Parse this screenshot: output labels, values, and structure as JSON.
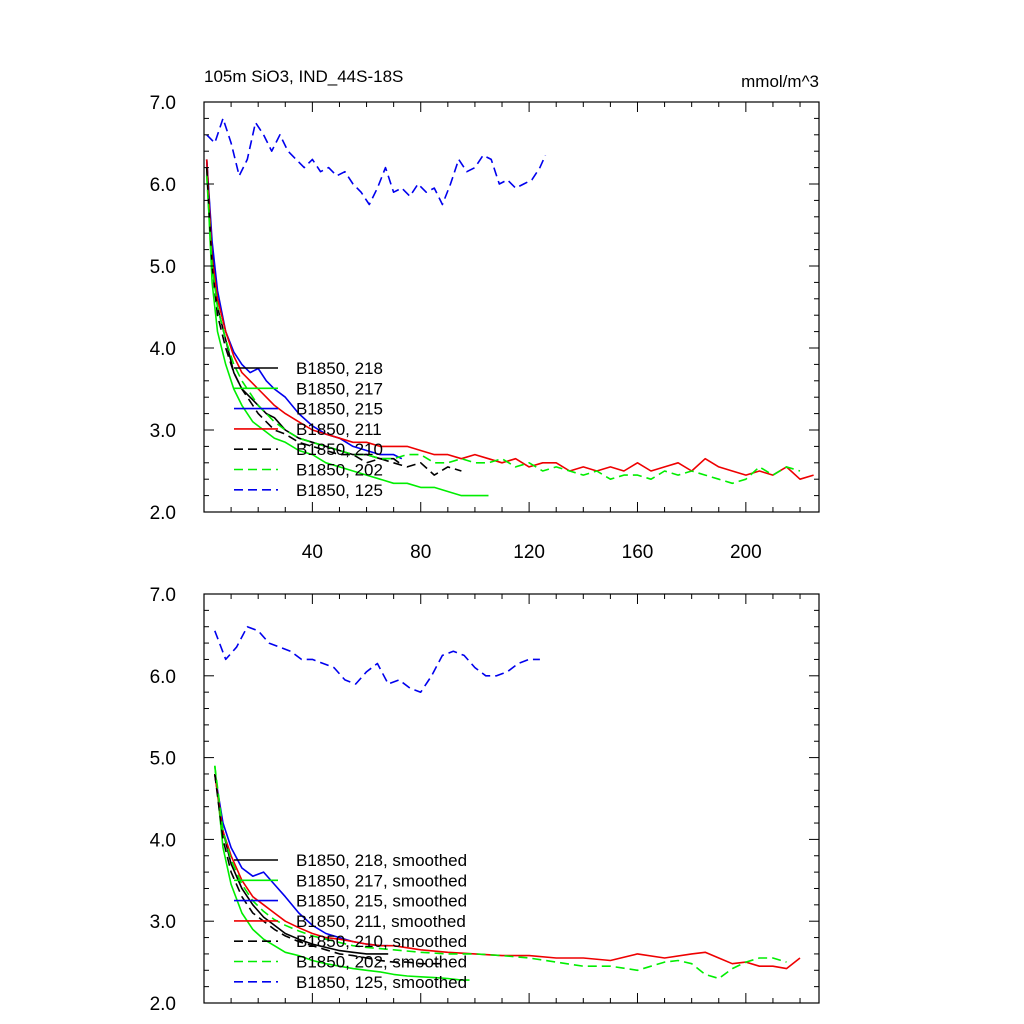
{
  "figure": {
    "title": "105m SiO3, IND_44S-18S",
    "units": "mmol/m^3"
  },
  "colors": {
    "black": "#000000",
    "green": "#00ee00",
    "blue": "#0000ee",
    "red": "#ee0000"
  },
  "chart_data": [
    {
      "type": "line",
      "xlim": [
        0,
        227
      ],
      "ylim": [
        2.0,
        7.0
      ],
      "yticks": [
        2.0,
        3.0,
        4.0,
        5.0,
        6.0,
        7.0
      ],
      "ytick_labels": [
        "2.0",
        "3.0",
        "4.0",
        "5.0",
        "6.0",
        "7.0"
      ],
      "xticks": [
        40,
        80,
        120,
        160,
        200
      ],
      "xtick_labels": [
        "40",
        "80",
        "120",
        "160",
        "200"
      ],
      "legend_position": "lower-left",
      "series": [
        {
          "name": "B1850, 218",
          "color": "#000000",
          "dash": "solid",
          "x": [
            1,
            3,
            5,
            8,
            11,
            14,
            17,
            20,
            23,
            26,
            30,
            35,
            40,
            45,
            50,
            55,
            60,
            65,
            70,
            72
          ],
          "y": [
            6.3,
            5.2,
            4.5,
            4.1,
            3.7,
            3.5,
            3.4,
            3.3,
            3.2,
            3.15,
            3.0,
            2.9,
            2.85,
            2.8,
            2.75,
            2.7,
            2.7,
            2.65,
            2.65,
            2.6
          ]
        },
        {
          "name": "B1850, 217",
          "color": "#00ee00",
          "dash": "solid",
          "x": [
            1,
            3,
            5,
            8,
            11,
            14,
            18,
            22,
            26,
            30,
            35,
            40,
            45,
            50,
            55,
            60,
            65,
            70,
            75,
            80,
            85,
            90,
            95,
            100,
            105
          ],
          "y": [
            6.2,
            4.8,
            4.2,
            3.8,
            3.5,
            3.3,
            3.1,
            3.0,
            2.9,
            2.85,
            2.75,
            2.7,
            2.6,
            2.55,
            2.5,
            2.45,
            2.4,
            2.35,
            2.35,
            2.3,
            2.3,
            2.25,
            2.2,
            2.2,
            2.2
          ]
        },
        {
          "name": "B1850, 215",
          "color": "#0000ee",
          "dash": "solid",
          "x": [
            1,
            3,
            5,
            8,
            11,
            14,
            17,
            20,
            23,
            26,
            30,
            35,
            40,
            45,
            50,
            55,
            60,
            65,
            70,
            73
          ],
          "y": [
            6.3,
            5.3,
            4.7,
            4.2,
            3.95,
            3.8,
            3.7,
            3.75,
            3.6,
            3.5,
            3.4,
            3.2,
            3.05,
            2.95,
            2.9,
            2.8,
            2.75,
            2.7,
            2.7,
            2.65
          ]
        },
        {
          "name": "B1850, 211",
          "color": "#ee0000",
          "dash": "solid",
          "x": [
            1,
            3,
            5,
            8,
            11,
            14,
            17,
            20,
            23,
            26,
            30,
            35,
            40,
            45,
            50,
            55,
            60,
            65,
            70,
            75,
            80,
            85,
            90,
            95,
            100,
            105,
            110,
            115,
            120,
            125,
            130,
            135,
            140,
            145,
            150,
            155,
            160,
            165,
            170,
            175,
            180,
            185,
            190,
            195,
            200,
            205,
            210,
            215,
            220,
            225
          ],
          "y": [
            6.3,
            5.1,
            4.6,
            4.2,
            3.9,
            3.7,
            3.6,
            3.5,
            3.4,
            3.3,
            3.2,
            3.1,
            3.0,
            2.95,
            2.9,
            2.85,
            2.85,
            2.8,
            2.8,
            2.8,
            2.75,
            2.7,
            2.7,
            2.65,
            2.7,
            2.65,
            2.6,
            2.65,
            2.55,
            2.6,
            2.6,
            2.5,
            2.55,
            2.5,
            2.55,
            2.5,
            2.6,
            2.5,
            2.55,
            2.6,
            2.5,
            2.65,
            2.55,
            2.5,
            2.45,
            2.5,
            2.45,
            2.55,
            2.4,
            2.45
          ]
        },
        {
          "name": "B1850, 210",
          "color": "#000000",
          "dash": "dashed",
          "x": [
            1,
            3,
            5,
            8,
            11,
            14,
            17,
            20,
            23,
            26,
            30,
            35,
            40,
            45,
            50,
            55,
            60,
            65,
            70,
            75,
            80,
            85,
            90,
            95
          ],
          "y": [
            6.2,
            5.0,
            4.4,
            4.0,
            3.7,
            3.5,
            3.35,
            3.2,
            3.1,
            3.0,
            2.95,
            2.85,
            2.8,
            2.75,
            2.7,
            2.7,
            2.6,
            2.65,
            2.6,
            2.55,
            2.6,
            2.45,
            2.55,
            2.5
          ]
        },
        {
          "name": "B1850, 202",
          "color": "#00ee00",
          "dash": "dashed",
          "x": [
            1,
            3,
            5,
            8,
            11,
            14,
            17,
            20,
            23,
            26,
            30,
            35,
            40,
            45,
            50,
            55,
            60,
            65,
            70,
            75,
            80,
            85,
            90,
            95,
            100,
            105,
            110,
            115,
            120,
            125,
            130,
            135,
            140,
            145,
            150,
            155,
            160,
            165,
            170,
            175,
            180,
            185,
            190,
            195,
            200,
            205,
            210,
            215,
            220
          ],
          "y": [
            6.1,
            5.0,
            4.5,
            4.1,
            3.8,
            3.6,
            3.45,
            3.3,
            3.2,
            3.1,
            3.0,
            2.9,
            2.85,
            2.8,
            2.75,
            2.7,
            2.7,
            2.65,
            2.65,
            2.7,
            2.7,
            2.6,
            2.6,
            2.65,
            2.6,
            2.6,
            2.65,
            2.55,
            2.6,
            2.5,
            2.55,
            2.5,
            2.45,
            2.5,
            2.4,
            2.45,
            2.45,
            2.4,
            2.5,
            2.45,
            2.5,
            2.45,
            2.4,
            2.35,
            2.4,
            2.55,
            2.45,
            2.55,
            2.5
          ]
        },
        {
          "name": "B1850, 125",
          "color": "#0000ee",
          "dash": "dashed",
          "x": [
            1,
            4,
            7,
            10,
            13,
            16,
            19,
            22,
            25,
            28,
            31,
            34,
            37,
            40,
            43,
            46,
            49,
            52,
            55,
            58,
            61,
            64,
            67,
            70,
            73,
            76,
            79,
            82,
            85,
            88,
            91,
            94,
            97,
            100,
            103,
            106,
            109,
            112,
            115,
            118,
            121,
            124,
            126
          ],
          "y": [
            6.6,
            6.5,
            6.8,
            6.5,
            6.1,
            6.3,
            6.75,
            6.6,
            6.4,
            6.6,
            6.4,
            6.3,
            6.2,
            6.3,
            6.15,
            6.2,
            6.1,
            6.15,
            6.0,
            5.9,
            5.75,
            5.95,
            6.2,
            5.9,
            5.95,
            5.85,
            6.0,
            5.9,
            5.95,
            5.75,
            6.0,
            6.3,
            6.15,
            6.2,
            6.35,
            6.3,
            6.0,
            6.05,
            5.95,
            6.0,
            6.05,
            6.2,
            6.35
          ]
        }
      ]
    },
    {
      "type": "line",
      "xlim": [
        0,
        227
      ],
      "ylim": [
        2.0,
        7.0
      ],
      "yticks": [
        2.0,
        3.0,
        4.0,
        5.0,
        6.0,
        7.0
      ],
      "ytick_labels": [
        "2.0",
        "3.0",
        "4.0",
        "5.0",
        "6.0",
        "7.0"
      ],
      "xticks": [
        40,
        80,
        120,
        160,
        200
      ],
      "xtick_labels": [],
      "legend_position": "lower-left",
      "series": [
        {
          "name": "B1850, 218, smoothed",
          "color": "#000000",
          "dash": "solid",
          "x": [
            4,
            7,
            10,
            14,
            18,
            22,
            26,
            30,
            35,
            40,
            45,
            50,
            55,
            60,
            65,
            68
          ],
          "y": [
            4.8,
            4.1,
            3.7,
            3.4,
            3.2,
            3.05,
            2.95,
            2.85,
            2.78,
            2.72,
            2.68,
            2.64,
            2.62,
            2.6,
            2.6,
            2.6
          ]
        },
        {
          "name": "B1850, 217, smoothed",
          "color": "#00ee00",
          "dash": "solid",
          "x": [
            4,
            7,
            10,
            14,
            18,
            22,
            26,
            30,
            35,
            40,
            45,
            50,
            55,
            60,
            65,
            70,
            75,
            80,
            85,
            90,
            95,
            98
          ],
          "y": [
            4.9,
            3.9,
            3.45,
            3.1,
            2.9,
            2.78,
            2.7,
            2.62,
            2.58,
            2.52,
            2.48,
            2.45,
            2.42,
            2.4,
            2.38,
            2.35,
            2.33,
            2.32,
            2.31,
            2.3,
            2.28,
            2.28
          ]
        },
        {
          "name": "B1850, 215, smoothed",
          "color": "#0000ee",
          "dash": "solid",
          "x": [
            4,
            7,
            10,
            14,
            18,
            22,
            26,
            30,
            35,
            40,
            45,
            50,
            55,
            60,
            65,
            68
          ],
          "y": [
            4.8,
            4.2,
            3.9,
            3.65,
            3.55,
            3.6,
            3.45,
            3.3,
            3.1,
            2.95,
            2.85,
            2.8,
            2.75,
            2.72,
            2.7,
            2.7
          ]
        },
        {
          "name": "B1850, 211, smoothed",
          "color": "#ee0000",
          "dash": "solid",
          "x": [
            4,
            7,
            10,
            14,
            18,
            22,
            26,
            30,
            35,
            40,
            45,
            50,
            55,
            60,
            65,
            70,
            80,
            90,
            100,
            110,
            120,
            130,
            140,
            150,
            160,
            170,
            180,
            185,
            190,
            195,
            200,
            205,
            210,
            215,
            220
          ],
          "y": [
            4.8,
            4.1,
            3.8,
            3.5,
            3.3,
            3.2,
            3.1,
            3.0,
            2.92,
            2.85,
            2.8,
            2.78,
            2.75,
            2.72,
            2.7,
            2.7,
            2.65,
            2.62,
            2.6,
            2.58,
            2.58,
            2.55,
            2.55,
            2.52,
            2.6,
            2.55,
            2.6,
            2.62,
            2.55,
            2.48,
            2.5,
            2.45,
            2.45,
            2.42,
            2.55
          ]
        },
        {
          "name": "B1850, 210, smoothed",
          "color": "#000000",
          "dash": "dashed",
          "x": [
            4,
            7,
            10,
            14,
            18,
            22,
            26,
            30,
            35,
            40,
            45,
            50,
            55,
            60,
            65,
            70,
            75,
            80,
            85,
            88
          ],
          "y": [
            4.8,
            4.0,
            3.6,
            3.3,
            3.1,
            3.0,
            2.9,
            2.82,
            2.75,
            2.7,
            2.65,
            2.6,
            2.58,
            2.55,
            2.52,
            2.5,
            2.5,
            2.48,
            2.48,
            2.48
          ]
        },
        {
          "name": "B1850, 202, smoothed",
          "color": "#00ee00",
          "dash": "dashed",
          "x": [
            4,
            7,
            10,
            14,
            18,
            22,
            26,
            30,
            35,
            40,
            45,
            50,
            55,
            60,
            70,
            80,
            90,
            100,
            110,
            120,
            130,
            140,
            150,
            160,
            165,
            170,
            175,
            180,
            185,
            190,
            195,
            200,
            205,
            210,
            215
          ],
          "y": [
            4.9,
            4.1,
            3.75,
            3.45,
            3.25,
            3.12,
            3.02,
            2.95,
            2.88,
            2.82,
            2.78,
            2.74,
            2.7,
            2.68,
            2.65,
            2.62,
            2.6,
            2.6,
            2.58,
            2.55,
            2.5,
            2.45,
            2.45,
            2.4,
            2.45,
            2.5,
            2.52,
            2.48,
            2.35,
            2.3,
            2.42,
            2.5,
            2.55,
            2.55,
            2.5
          ]
        },
        {
          "name": "B1850, 125, smoothed",
          "color": "#0000ee",
          "dash": "dashed",
          "x": [
            4,
            8,
            12,
            16,
            20,
            24,
            28,
            32,
            36,
            40,
            44,
            48,
            52,
            56,
            60,
            64,
            68,
            72,
            76,
            80,
            84,
            88,
            92,
            96,
            100,
            104,
            108,
            112,
            116,
            120,
            124
          ],
          "y": [
            6.55,
            6.2,
            6.35,
            6.6,
            6.55,
            6.4,
            6.35,
            6.3,
            6.2,
            6.2,
            6.15,
            6.1,
            5.95,
            5.9,
            6.05,
            6.15,
            5.9,
            5.95,
            5.85,
            5.8,
            6.0,
            6.25,
            6.3,
            6.25,
            6.1,
            6.0,
            6.0,
            6.05,
            6.15,
            6.2,
            6.2
          ]
        }
      ]
    }
  ]
}
